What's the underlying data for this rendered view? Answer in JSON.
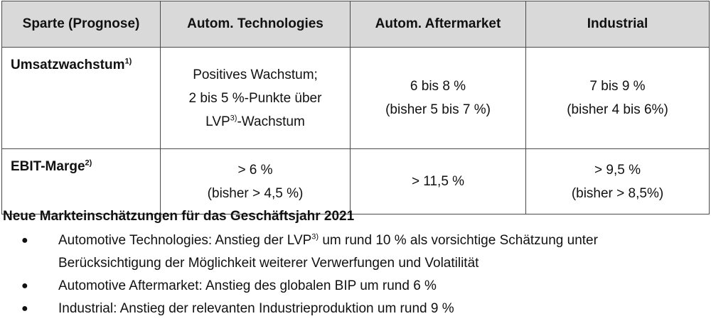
{
  "table": {
    "headers": [
      "Sparte (Prognose)",
      "Autom. Technologies",
      "Autom. Aftermarket",
      "Industrial"
    ],
    "rows": [
      {
        "label": "Umsatzwachstum",
        "label_sup": "1)",
        "cells": [
          {
            "line1": "Positives Wachstum;",
            "line2": "2 bis 5 %-Punkte über",
            "line3_pre": "LVP",
            "line3_sup": "3)",
            "line3_post": "-Wachstum"
          },
          {
            "line1": "6 bis 8 %",
            "line2": "(bisher 5 bis 7 %)"
          },
          {
            "line1": "7 bis 9 %",
            "line2": "(bisher 4 bis 6%)"
          }
        ]
      },
      {
        "label": "EBIT-Marge",
        "label_sup": "2)",
        "cells": [
          {
            "line1": "> 6 %",
            "line2": "(bisher > 4,5 %)"
          },
          {
            "line1": "> 11,5 %"
          },
          {
            "line1": "> 9,5 %",
            "line2": "(bisher > 8,5%)"
          }
        ]
      }
    ]
  },
  "notes": {
    "title": "Neue Markteinschätzungen für das Geschäftsjahr 2021",
    "bullet_symbol": "●",
    "items": [
      {
        "pre": "Automotive Technologies: Anstieg der LVP",
        "sup": "3)",
        "post": " um rund 10 % als vorsichtige Schätzung unter",
        "line2": "Berücksichtigung der Möglichkeit weiterer Verwerfungen und Volatilität"
      },
      {
        "text": "Automotive Aftermarket: Anstieg des globalen BIP um rund 6 %"
      },
      {
        "text": "Industrial: Anstieg der relevanten Industrieproduktion um rund 9 %"
      }
    ]
  }
}
